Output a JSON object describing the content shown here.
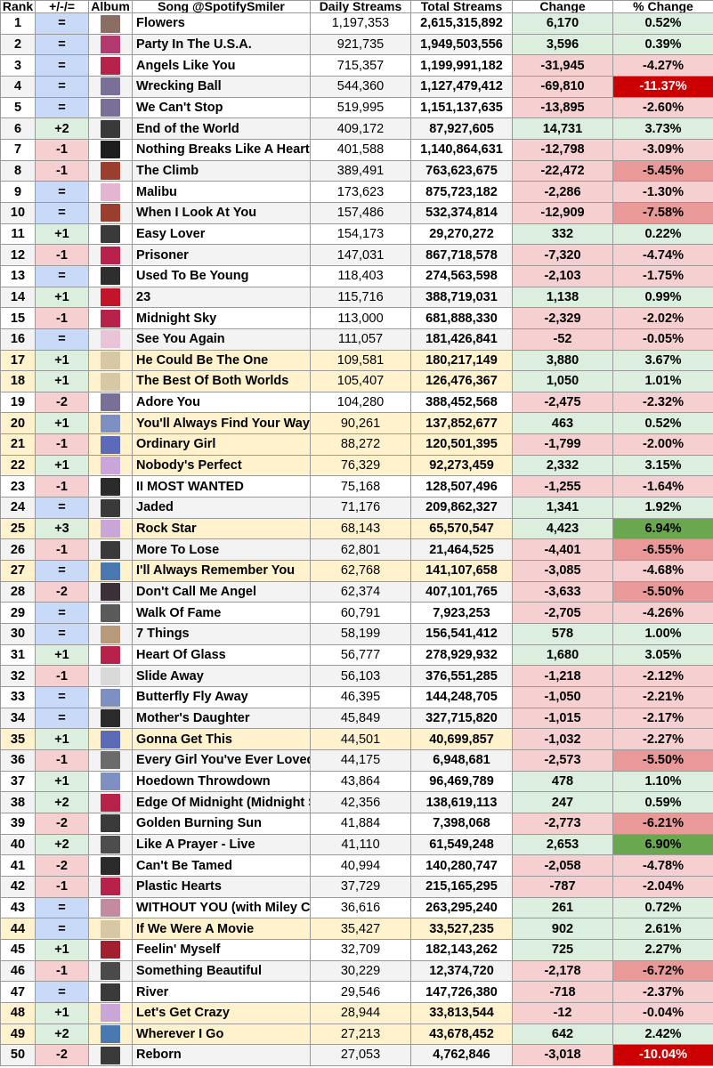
{
  "headers": {
    "rank": "Rank",
    "move": "+/-/=",
    "album": "Album",
    "song": "Song @SpotifySmiler",
    "daily": "Daily Streams",
    "total": "Total Streams",
    "change": "Change",
    "pct": "% Change"
  },
  "colors": {
    "up": "#dceedd",
    "down": "#f6d0d0",
    "same": "#c9daf8",
    "highlight_row": "#fff2cc",
    "plain_row": "#ffffff",
    "alt_row": "#f3f3f3",
    "pct_big_up": "#6aa84f",
    "pct_big_down": "#cc0000",
    "pct_strong_down": "#ea9999"
  },
  "rows": [
    {
      "rank": "1",
      "move": "=",
      "song": "Flowers",
      "daily": "1,197,353",
      "total": "2,615,315,892",
      "change": "6,170",
      "pct": "0.52%",
      "icon": "flowers-cover-icon",
      "art": "#8a6e62",
      "hl": false
    },
    {
      "rank": "2",
      "move": "=",
      "song": "Party In The U.S.A.",
      "daily": "921,735",
      "total": "1,949,503,556",
      "change": "3,596",
      "pct": "0.39%",
      "icon": "party-cover-icon",
      "art": "#b23a6e",
      "hl": false
    },
    {
      "rank": "3",
      "move": "=",
      "song": "Angels Like You",
      "daily": "715,357",
      "total": "1,199,991,182",
      "change": "-31,945",
      "pct": "-4.27%",
      "icon": "plastic-hearts-cover-icon",
      "art": "#b7224a",
      "hl": false
    },
    {
      "rank": "4",
      "move": "=",
      "song": "Wrecking Ball",
      "daily": "544,360",
      "total": "1,127,479,412",
      "change": "-69,810",
      "pct": "-11.37%",
      "icon": "bangerz-cover-icon",
      "art": "#7a6f96",
      "hl": false
    },
    {
      "rank": "5",
      "move": "=",
      "song": "We Can't Stop",
      "daily": "519,995",
      "total": "1,151,137,635",
      "change": "-13,895",
      "pct": "-2.60%",
      "icon": "bangerz-cover-icon",
      "art": "#7a6f96",
      "hl": false
    },
    {
      "rank": "6",
      "move": "+2",
      "song": "End of the World",
      "daily": "409,172",
      "total": "87,927,605",
      "change": "14,731",
      "pct": "3.73%",
      "icon": "endless-summer-cover-icon",
      "art": "#3a3a3a",
      "hl": false
    },
    {
      "rank": "7",
      "move": "-1",
      "song": "Nothing Breaks Like A Heart",
      "daily": "401,588",
      "total": "1,140,864,631",
      "change": "-12,798",
      "pct": "-3.09%",
      "icon": "nothing-breaks-cover-icon",
      "art": "#1e1e1e",
      "hl": false
    },
    {
      "rank": "8",
      "move": "-1",
      "song": "The Climb",
      "daily": "389,491",
      "total": "763,623,675",
      "change": "-22,472",
      "pct": "-5.45%",
      "icon": "the-climb-cover-icon",
      "art": "#9a3e2e",
      "hl": false
    },
    {
      "rank": "9",
      "move": "=",
      "song": "Malibu",
      "daily": "173,623",
      "total": "875,723,182",
      "change": "-2,286",
      "pct": "-1.30%",
      "icon": "younger-now-cover-icon",
      "art": "#e2b6d0",
      "hl": false
    },
    {
      "rank": "10",
      "move": "=",
      "song": "When I Look At You",
      "daily": "157,486",
      "total": "532,374,814",
      "change": "-12,909",
      "pct": "-7.58%",
      "icon": "the-time-of-our-lives-cover-icon",
      "art": "#9a3e2e",
      "hl": false
    },
    {
      "rank": "11",
      "move": "+1",
      "song": "Easy Lover",
      "daily": "154,173",
      "total": "29,270,272",
      "change": "332",
      "pct": "0.22%",
      "icon": "endless-summer-cover-icon",
      "art": "#3a3a3a",
      "hl": false
    },
    {
      "rank": "12",
      "move": "-1",
      "song": "Prisoner",
      "daily": "147,031",
      "total": "867,718,578",
      "change": "-7,320",
      "pct": "-4.74%",
      "icon": "plastic-hearts-cover-icon",
      "art": "#b7224a",
      "hl": false
    },
    {
      "rank": "13",
      "move": "=",
      "song": "Used To Be Young",
      "daily": "118,403",
      "total": "274,563,598",
      "change": "-2,103",
      "pct": "-1.75%",
      "icon": "used-to-be-young-cover-icon",
      "art": "#2e2e2e",
      "hl": false
    },
    {
      "rank": "14",
      "move": "+1",
      "song": "23",
      "daily": "115,716",
      "total": "388,719,031",
      "change": "1,138",
      "pct": "0.99%",
      "icon": "23-cover-icon",
      "art": "#c3142b",
      "hl": false
    },
    {
      "rank": "15",
      "move": "-1",
      "song": "Midnight Sky",
      "daily": "113,000",
      "total": "681,888,330",
      "change": "-2,329",
      "pct": "-2.02%",
      "icon": "plastic-hearts-cover-icon",
      "art": "#b7224a",
      "hl": false
    },
    {
      "rank": "16",
      "move": "=",
      "song": "See You Again",
      "daily": "111,057",
      "total": "181,426,841",
      "change": "-52",
      "pct": "-0.05%",
      "icon": "meet-miley-cover-icon",
      "art": "#e9c3d7",
      "hl": false
    },
    {
      "rank": "17",
      "move": "+1",
      "song": "He Could Be The One",
      "daily": "109,581",
      "total": "180,217,149",
      "change": "3,880",
      "pct": "3.67%",
      "icon": "hannah-montana-cover-icon",
      "art": "#d8c7a4",
      "hl": true
    },
    {
      "rank": "18",
      "move": "+1",
      "song": "The Best Of Both Worlds",
      "daily": "105,407",
      "total": "126,476,367",
      "change": "1,050",
      "pct": "1.01%",
      "icon": "hannah-montana-cover-icon",
      "art": "#d8c7a4",
      "hl": true
    },
    {
      "rank": "19",
      "move": "-2",
      "song": "Adore You",
      "daily": "104,280",
      "total": "388,452,568",
      "change": "-2,475",
      "pct": "-2.32%",
      "icon": "bangerz-cover-icon",
      "art": "#7a6f96",
      "hl": false
    },
    {
      "rank": "20",
      "move": "+1",
      "song": "You'll Always Find Your Way Back Home",
      "daily": "90,261",
      "total": "137,852,677",
      "change": "463",
      "pct": "0.52%",
      "icon": "hannah-montana-movie-cover-icon",
      "art": "#7e8fc2",
      "hl": true
    },
    {
      "rank": "21",
      "move": "-1",
      "song": "Ordinary Girl",
      "daily": "88,272",
      "total": "120,501,395",
      "change": "-1,799",
      "pct": "-2.00%",
      "icon": "hannah-montana-3-cover-icon",
      "art": "#5c6bb8",
      "hl": true
    },
    {
      "rank": "22",
      "move": "+1",
      "song": "Nobody's Perfect",
      "daily": "76,329",
      "total": "92,273,459",
      "change": "2,332",
      "pct": "3.15%",
      "icon": "hannah-montana-2-cover-icon",
      "art": "#c9a5d8",
      "hl": true
    },
    {
      "rank": "23",
      "move": "-1",
      "song": "II MOST WANTED",
      "daily": "75,168",
      "total": "128,507,496",
      "change": "-1,255",
      "pct": "-1.64%",
      "icon": "cowboy-carter-cover-icon",
      "art": "#2b2b2b",
      "hl": false
    },
    {
      "rank": "24",
      "move": "=",
      "song": "Jaded",
      "daily": "71,176",
      "total": "209,862,327",
      "change": "1,341",
      "pct": "1.92%",
      "icon": "endless-summer-cover-icon",
      "art": "#3a3a3a",
      "hl": false
    },
    {
      "rank": "25",
      "move": "+3",
      "song": "Rock Star",
      "daily": "68,143",
      "total": "65,570,547",
      "change": "4,423",
      "pct": "6.94%",
      "icon": "hannah-montana-2-cover-icon",
      "art": "#c9a5d8",
      "hl": true
    },
    {
      "rank": "26",
      "move": "-1",
      "song": "More To Lose",
      "daily": "62,801",
      "total": "21,464,525",
      "change": "-4,401",
      "pct": "-6.55%",
      "icon": "endless-summer-cover-icon",
      "art": "#3a3a3a",
      "hl": false
    },
    {
      "rank": "27",
      "move": "=",
      "song": "I'll Always Remember You",
      "daily": "62,768",
      "total": "141,107,658",
      "change": "-3,085",
      "pct": "-4.68%",
      "icon": "hannah-montana-forever-cover-icon",
      "art": "#4a78b0",
      "hl": true
    },
    {
      "rank": "28",
      "move": "-2",
      "song": "Don't Call Me Angel",
      "daily": "62,374",
      "total": "407,101,765",
      "change": "-3,633",
      "pct": "-5.50%",
      "icon": "charlies-angels-cover-icon",
      "art": "#3b2f3a",
      "hl": false
    },
    {
      "rank": "29",
      "move": "=",
      "song": "Walk Of Fame",
      "daily": "60,791",
      "total": "7,923,253",
      "change": "-2,705",
      "pct": "-4.26%",
      "icon": "walk-of-fame-cover-icon",
      "art": "#5a5a5a",
      "hl": false
    },
    {
      "rank": "30",
      "move": "=",
      "song": "7 Things",
      "daily": "58,199",
      "total": "156,541,412",
      "change": "578",
      "pct": "1.00%",
      "icon": "breakout-cover-icon",
      "art": "#b79a7a",
      "hl": false
    },
    {
      "rank": "31",
      "move": "+1",
      "song": "Heart Of Glass",
      "daily": "56,777",
      "total": "278,929,932",
      "change": "1,680",
      "pct": "3.05%",
      "icon": "plastic-hearts-cover-icon",
      "art": "#b7224a",
      "hl": false
    },
    {
      "rank": "32",
      "move": "-1",
      "song": "Slide Away",
      "daily": "56,103",
      "total": "376,551,285",
      "change": "-1,218",
      "pct": "-2.12%",
      "icon": "slide-away-cover-icon",
      "art": "#d9d9d9",
      "hl": false
    },
    {
      "rank": "33",
      "move": "=",
      "song": "Butterfly Fly Away",
      "daily": "46,395",
      "total": "144,248,705",
      "change": "-1,050",
      "pct": "-2.21%",
      "icon": "hannah-montana-movie-cover-icon",
      "art": "#7e8fc2",
      "hl": false
    },
    {
      "rank": "34",
      "move": "=",
      "song": "Mother's Daughter",
      "daily": "45,849",
      "total": "327,715,820",
      "change": "-1,015",
      "pct": "-2.17%",
      "icon": "she-is-coming-cover-icon",
      "art": "#2a2a2a",
      "hl": false
    },
    {
      "rank": "35",
      "move": "+1",
      "song": "Gonna Get This",
      "daily": "44,501",
      "total": "40,699,857",
      "change": "-1,032",
      "pct": "-2.27%",
      "icon": "hannah-montana-3-cover-icon",
      "art": "#5c6bb8",
      "hl": true
    },
    {
      "rank": "36",
      "move": "-1",
      "song": "Every Girl You've Ever Loved",
      "daily": "44,175",
      "total": "6,948,681",
      "change": "-2,573",
      "pct": "-5.50%",
      "icon": "every-girl-cover-icon",
      "art": "#6b6b6b",
      "hl": false
    },
    {
      "rank": "37",
      "move": "+1",
      "song": "Hoedown Throwdown",
      "daily": "43,864",
      "total": "96,469,789",
      "change": "478",
      "pct": "1.10%",
      "icon": "hannah-montana-movie-cover-icon",
      "art": "#7e8fc2",
      "hl": false
    },
    {
      "rank": "38",
      "move": "+2",
      "song": "Edge Of Midnight (Midnight Sky Remix)",
      "daily": "42,356",
      "total": "138,619,113",
      "change": "247",
      "pct": "0.59%",
      "icon": "plastic-hearts-cover-icon",
      "art": "#b7224a",
      "hl": false
    },
    {
      "rank": "39",
      "move": "-2",
      "song": "Golden Burning Sun",
      "daily": "41,884",
      "total": "7,398,068",
      "change": "-2,773",
      "pct": "-6.21%",
      "icon": "endless-summer-cover-icon",
      "art": "#3a3a3a",
      "hl": false
    },
    {
      "rank": "40",
      "move": "+2",
      "song": "Like A Prayer - Live",
      "daily": "41,110",
      "total": "61,549,248",
      "change": "2,653",
      "pct": "6.90%",
      "icon": "attention-cover-icon",
      "art": "#4d4d4d",
      "hl": false
    },
    {
      "rank": "41",
      "move": "-2",
      "song": "Can't Be Tamed",
      "daily": "40,994",
      "total": "140,280,747",
      "change": "-2,058",
      "pct": "-4.78%",
      "icon": "cant-be-tamed-cover-icon",
      "art": "#2b2b2b",
      "hl": false
    },
    {
      "rank": "42",
      "move": "-1",
      "song": "Plastic Hearts",
      "daily": "37,729",
      "total": "215,165,295",
      "change": "-787",
      "pct": "-2.04%",
      "icon": "plastic-hearts-cover-icon",
      "art": "#b7224a",
      "hl": false
    },
    {
      "rank": "43",
      "move": "=",
      "song": "WITHOUT YOU (with Miley Cyrus)",
      "daily": "36,616",
      "total": "263,295,240",
      "change": "261",
      "pct": "0.72%",
      "icon": "without-you-cover-icon",
      "art": "#c48aa0",
      "hl": false
    },
    {
      "rank": "44",
      "move": "=",
      "song": "If We Were A Movie",
      "daily": "35,427",
      "total": "33,527,235",
      "change": "902",
      "pct": "2.61%",
      "icon": "hannah-montana-cover-icon",
      "art": "#d8c7a4",
      "hl": true
    },
    {
      "rank": "45",
      "move": "+1",
      "song": "Feelin' Myself",
      "daily": "32,709",
      "total": "182,143,262",
      "change": "725",
      "pct": "2.27%",
      "icon": "feelin-myself-cover-icon",
      "art": "#a1202f",
      "hl": false
    },
    {
      "rank": "46",
      "move": "-1",
      "song": "Something Beautiful",
      "daily": "30,229",
      "total": "12,374,720",
      "change": "-2,178",
      "pct": "-6.72%",
      "icon": "something-beautiful-cover-icon",
      "art": "#4a4a4a",
      "hl": false
    },
    {
      "rank": "47",
      "move": "=",
      "song": "River",
      "daily": "29,546",
      "total": "147,726,380",
      "change": "-718",
      "pct": "-2.37%",
      "icon": "endless-summer-cover-icon",
      "art": "#3a3a3a",
      "hl": false
    },
    {
      "rank": "48",
      "move": "+1",
      "song": "Let's Get Crazy",
      "daily": "28,944",
      "total": "33,813,544",
      "change": "-12",
      "pct": "-0.04%",
      "icon": "hannah-montana-2-cover-icon",
      "art": "#c9a5d8",
      "hl": true
    },
    {
      "rank": "49",
      "move": "+2",
      "song": "Wherever I Go",
      "daily": "27,213",
      "total": "43,678,452",
      "change": "642",
      "pct": "2.42%",
      "icon": "hannah-montana-forever-cover-icon",
      "art": "#4a78b0",
      "hl": true
    },
    {
      "rank": "50",
      "move": "-2",
      "song": "Reborn",
      "daily": "27,053",
      "total": "4,762,846",
      "change": "-3,018",
      "pct": "-10.04%",
      "icon": "reborn-cover-icon",
      "art": "#3a3a3a",
      "hl": false
    }
  ]
}
